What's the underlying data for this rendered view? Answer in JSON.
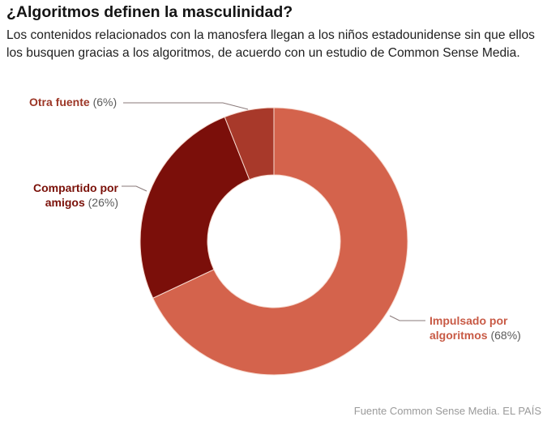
{
  "header": {
    "title": "¿Algoritmos definen la masculinidad?",
    "subtitle": "Los contenidos relacionados con la manosfera llegan a los niños estadounidense sin que ellos los busquen gracias a los algoritmos, de acuerdo con un estudio de Common Sense Media."
  },
  "chart_data": {
    "type": "pie",
    "variant": "donut",
    "title": "¿Algoritmos definen la masculinidad?",
    "unit": "%",
    "slices": [
      {
        "label_bold": "Impulsado por algoritmos",
        "label_line1": "Impulsado por",
        "label_line2": "algoritmos",
        "value": 68,
        "value_text": "(68%)",
        "color": "#d4634c"
      },
      {
        "label_bold": "Compartido por amigos",
        "label_line1": "Compartido por",
        "label_line2": "amigos",
        "value": 26,
        "value_text": "(26%)",
        "color": "#7b0f0a"
      },
      {
        "label_bold": "Otra fuente",
        "label_line1": "Otra fuente",
        "label_line2": "",
        "value": 6,
        "value_text": "(6%)",
        "color": "#a8392a"
      }
    ],
    "start_angle": "12 o'clock",
    "direction": "clockwise"
  },
  "footer": {
    "source": "Fuente Common Sense Media. EL PAÍS"
  }
}
